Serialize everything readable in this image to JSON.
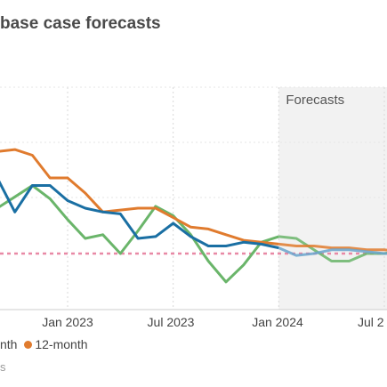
{
  "header": {
    "title": "base case forecasts"
  },
  "legend": {
    "items": [
      {
        "label": "nth",
        "color": "#1a6fa3"
      },
      {
        "label": "12-month",
        "color": "#e07b2e"
      }
    ]
  },
  "source": {
    "text": "s"
  },
  "chart_data": {
    "type": "line",
    "forecast_label": "Forecasts",
    "x_ticks": [
      "Jan 2023",
      "Jul 2023",
      "Jan 2024",
      "Jul 2"
    ],
    "x_unit": "months since Jan 2022",
    "target_line_color": "#e889a6",
    "forecast_shade_color": "#f2f2f2",
    "series": [
      {
        "name": "",
        "color": "#1a6fa3",
        "forecast_color": "#6aa5cc",
        "x": [
          5,
          6,
          7,
          8,
          9,
          10,
          11,
          12,
          13,
          14,
          15,
          16,
          17,
          18,
          19,
          20,
          21,
          22,
          23,
          24,
          25,
          26,
          27,
          28,
          29,
          30,
          31
        ],
        "values": [
          5.4,
          5.4,
          5.6,
          5.0,
          4.1,
          4.8,
          4.8,
          4.4,
          4.2,
          4.1,
          4.05,
          3.4,
          3.45,
          3.8,
          3.45,
          3.2,
          3.2,
          3.3,
          3.25,
          3.15,
          2.95,
          3.0,
          3.1,
          3.1,
          3.05,
          3.0,
          3.0
        ],
        "forecast_start": 24
      },
      {
        "name": "",
        "color": "#e07b2e",
        "forecast_color": "#e07b2e",
        "x": [
          5,
          6,
          7,
          8,
          9,
          10,
          11,
          12,
          13,
          14,
          15,
          16,
          17,
          18,
          19,
          20,
          21,
          22,
          23,
          24,
          25,
          26,
          27,
          28,
          29,
          30,
          31
        ],
        "values": [
          6.6,
          6.35,
          6.0,
          5.7,
          5.75,
          5.6,
          5.0,
          5.0,
          4.6,
          4.1,
          4.15,
          4.2,
          4.2,
          3.95,
          3.7,
          3.65,
          3.5,
          3.35,
          3.3,
          3.25,
          3.2,
          3.2,
          3.15,
          3.15,
          3.1,
          3.1,
          3.05
        ],
        "forecast_start": 24
      },
      {
        "name": "",
        "color": "#6ab56a",
        "forecast_color": "#6ab56a",
        "x": [
          5,
          6,
          7,
          8,
          9,
          10,
          11,
          12,
          13,
          14,
          15,
          16,
          17,
          18,
          19,
          20,
          21,
          22,
          23,
          24,
          25,
          26,
          27,
          28,
          29,
          30,
          31
        ],
        "values": [
          5.0,
          4.6,
          4.9,
          4.2,
          4.5,
          4.8,
          4.45,
          3.9,
          3.4,
          3.5,
          3.0,
          3.6,
          4.25,
          4.0,
          3.5,
          2.8,
          2.25,
          2.7,
          3.3,
          3.45,
          3.4,
          3.1,
          2.8,
          2.8,
          3.0,
          3.0,
          3.1
        ],
        "forecast_start": 24
      }
    ],
    "target_value": 3.0
  }
}
